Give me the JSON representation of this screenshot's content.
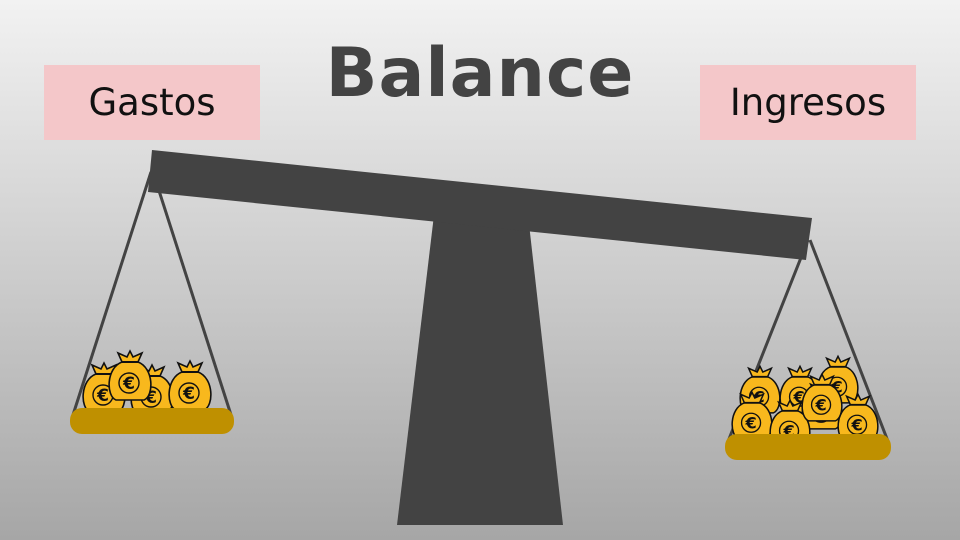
{
  "title": "Balance",
  "left_pan": {
    "label": "Gastos",
    "bag_count": 4
  },
  "right_pan": {
    "label": "Ingresos",
    "bag_count": 8
  },
  "bag_symbol": "€",
  "colors": {
    "label_background": "#f4c7c9",
    "scale": "#434343",
    "pan": "#bf9000",
    "bag": "#f8b81d",
    "bag_outline": "#111111",
    "title": "#434343"
  }
}
